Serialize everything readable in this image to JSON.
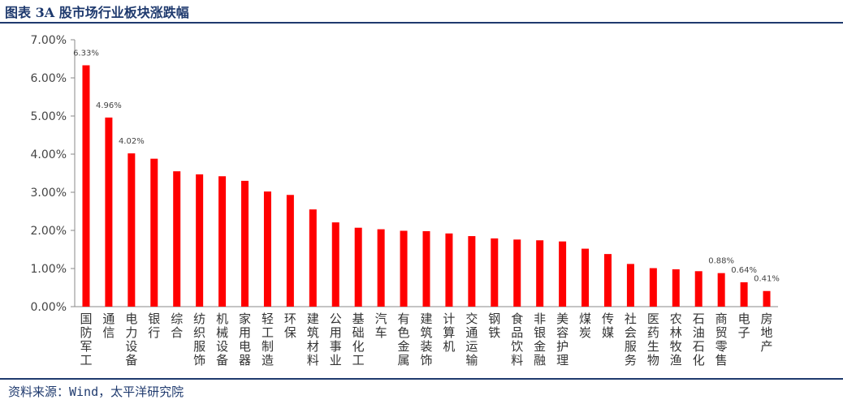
{
  "header": {
    "title": "图表 3A 股市场行业板块涨跌幅"
  },
  "footer": {
    "source": "资料来源：Wind，太平洋研究院"
  },
  "chart_data": {
    "type": "bar",
    "title": "",
    "xlabel": "",
    "ylabel": "",
    "ylim": [
      0,
      0.07
    ],
    "y_ticks": [
      "0.00%",
      "1.00%",
      "2.00%",
      "3.00%",
      "4.00%",
      "5.00%",
      "6.00%",
      "7.00%"
    ],
    "grid": false,
    "bar_color": "#ff0000",
    "categories": [
      "国防军工",
      "通信",
      "电力设备",
      "银行",
      "综合",
      "纺织服饰",
      "机械设备",
      "家用电器",
      "轻工制造",
      "环保",
      "建筑材料",
      "公用事业",
      "基础化工",
      "汽车",
      "有色金属",
      "建筑装饰",
      "计算机",
      "交通运输",
      "钢铁",
      "食品饮料",
      "非银金融",
      "美容护理",
      "煤炭",
      "传媒",
      "社会服务",
      "医药生物",
      "农林牧渔",
      "石油石化",
      "商贸零售",
      "电子",
      "房地产"
    ],
    "values": [
      0.0633,
      0.0496,
      0.0402,
      0.0388,
      0.0355,
      0.0347,
      0.0342,
      0.033,
      0.0302,
      0.0293,
      0.0255,
      0.0221,
      0.0207,
      0.0203,
      0.0199,
      0.0198,
      0.0192,
      0.0185,
      0.0179,
      0.0176,
      0.0174,
      0.0171,
      0.0152,
      0.0138,
      0.0112,
      0.0101,
      0.0098,
      0.0093,
      0.0088,
      0.0064,
      0.0041
    ],
    "data_labels": [
      {
        "index": 0,
        "text": "6.33%"
      },
      {
        "index": 1,
        "text": "4.96%"
      },
      {
        "index": 2,
        "text": "4.02%"
      },
      {
        "index": 28,
        "text": "0.88%"
      },
      {
        "index": 29,
        "text": "0.64%"
      },
      {
        "index": 30,
        "text": "0.41%"
      }
    ]
  }
}
